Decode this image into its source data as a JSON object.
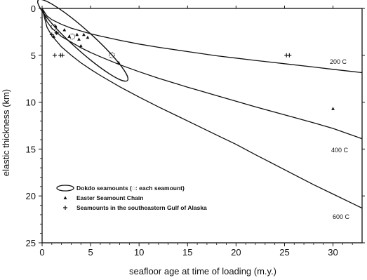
{
  "chart_data": {
    "type": "scatter",
    "xlabel": "seafloor age at time of loading (m.y.)",
    "ylabel": "elastic thickness (km)",
    "xlim": [
      0,
      33
    ],
    "ylim": [
      0,
      25
    ],
    "y_inverted": true,
    "xticks": [
      0,
      5,
      10,
      15,
      20,
      25,
      30
    ],
    "yticks": [
      0,
      5,
      10,
      15,
      20,
      25
    ],
    "grid": false,
    "legend_position": "bottom-left",
    "curves": [
      {
        "label": "200 C",
        "x": [
          0,
          0.5,
          1,
          2,
          3,
          4,
          5,
          6,
          8,
          10,
          12,
          15,
          18,
          20,
          22,
          25,
          28,
          30,
          33
        ],
        "y": [
          0,
          0.8,
          1.2,
          1.7,
          2.1,
          2.4,
          2.7,
          2.95,
          3.4,
          3.8,
          4.15,
          4.6,
          5.05,
          5.3,
          5.55,
          5.9,
          6.25,
          6.5,
          6.85
        ]
      },
      {
        "label": "400 C",
        "x": [
          0,
          0.5,
          1,
          2,
          3,
          4,
          5,
          6,
          8,
          10,
          12,
          15,
          18,
          20,
          22,
          25,
          28,
          30,
          33
        ],
        "y": [
          0,
          1.4,
          2.1,
          3.0,
          3.6,
          4.2,
          4.7,
          5.15,
          6.0,
          6.75,
          7.45,
          8.4,
          9.3,
          9.9,
          10.5,
          11.35,
          12.2,
          12.8,
          13.9
        ]
      },
      {
        "label": "600 C",
        "x": [
          0,
          0.5,
          1,
          2,
          3,
          4,
          5,
          6,
          8,
          10,
          12,
          15,
          18,
          20,
          22,
          25,
          28,
          30,
          33
        ],
        "y": [
          0,
          2.0,
          2.9,
          4.1,
          5.0,
          5.8,
          6.5,
          7.15,
          8.35,
          9.45,
          10.5,
          12.0,
          13.5,
          14.5,
          15.6,
          17.2,
          18.8,
          19.8,
          21.3
        ]
      }
    ],
    "series": [
      {
        "name": "Dokdo seamounts (◌: each seamount)",
        "marker": "dotted-circle",
        "x": [
          1.2,
          3.1,
          7.2
        ],
        "y": [
          2.0,
          3.0,
          5.0
        ]
      },
      {
        "name": "Easter Seamount Chain",
        "marker": "triangle",
        "x": [
          1.2,
          1.4,
          1.5,
          2.3,
          2.8,
          3.6,
          3.8,
          4.0,
          4.3,
          4.7,
          7.9,
          30.0
        ],
        "y": [
          3.0,
          1.9,
          2.6,
          2.3,
          3.0,
          2.8,
          3.3,
          4.0,
          2.8,
          3.1,
          5.8,
          10.7
        ]
      },
      {
        "name": "Seamounts in the southeastern Gulf of Alaska",
        "marker": "plus",
        "x": [
          1.5,
          1.0,
          1.3,
          1.9,
          2.1,
          25.2,
          25.5
        ],
        "y": [
          2.6,
          2.8,
          5.0,
          5.0,
          5.0,
          5.0,
          5.0
        ]
      }
    ],
    "ellipse": {
      "label": "Dokdo seamounts",
      "center_x": 4.2,
      "center_y": 3.4,
      "semi_major": 6.3,
      "semi_minor": 1.05,
      "angle_deg": -42
    }
  },
  "legend": {
    "entries": [
      {
        "symbol": "ellipse",
        "text": "Dokdo seamounts (◌: each seamount)"
      },
      {
        "symbol": "triangle",
        "text": "Easter Seamount Chain"
      },
      {
        "symbol": "plus",
        "text": "Seamounts in the southeastern Gulf of Alaska"
      }
    ]
  },
  "curve_labels": [
    "200 C",
    "400 C",
    "600 C"
  ]
}
